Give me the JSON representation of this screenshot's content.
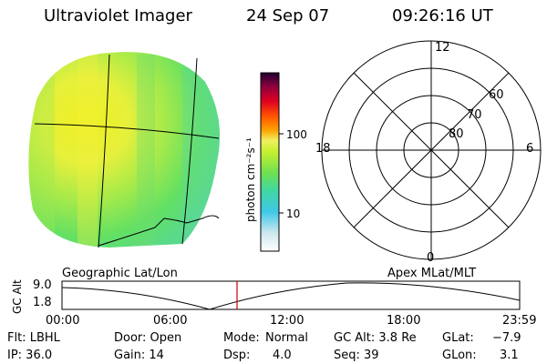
{
  "header": {
    "instrument": "Ultraviolet Imager",
    "date": "24 Sep 07",
    "time": "09:26:16 UT"
  },
  "colorbar": {
    "unit_label": "photon cm⁻²s⁻¹",
    "ticks": [
      "100",
      "10"
    ]
  },
  "polar_plot": {
    "mlt_labels": [
      "12",
      "18",
      "6",
      "0"
    ],
    "lat_labels": [
      "60",
      "70",
      "80"
    ]
  },
  "image_caption": "Geographic Lat/Lon",
  "polar_caption": "Apex MLat/MLT",
  "altitude_plot": {
    "ylabel": "GC Alt",
    "yticks": [
      "9.0",
      "1.8"
    ],
    "xticks": [
      "00:00",
      "06:00",
      "12:00",
      "18:00",
      "23:59"
    ]
  },
  "status": {
    "flt": "Flt: LBHL",
    "door": "Door: Open",
    "mode_label": "Mode:",
    "mode_value": "Normal",
    "gc_alt": "GC Alt: 3.8 Re",
    "glat_label": "GLat:",
    "glat_value": "−7.9",
    "ip": "IP: 36.0",
    "gain": "Gain: 14",
    "dsp_label": "Dsp:",
    "dsp_value": "4.0",
    "seq": "Seq: 39",
    "glon_label": "GLon:",
    "glon_value": "3.1"
  },
  "colors": {
    "marker": "#cc0000",
    "image_yellow": "#e6f03c",
    "image_green": "#63e063"
  }
}
